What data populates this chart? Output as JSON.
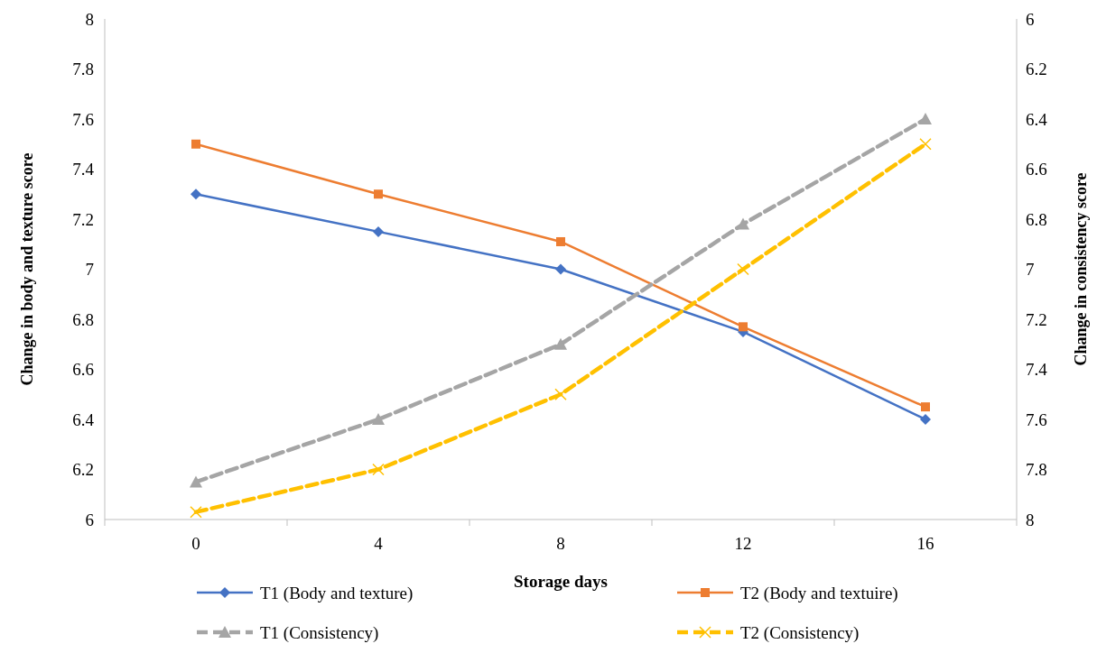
{
  "chart_data": {
    "type": "line",
    "xlabel": "Storage days",
    "ylabel": "Change in body and texture score",
    "y2label": "Change in consistency score",
    "categories": [
      "0",
      "4",
      "8",
      "12",
      "16"
    ],
    "ylim": [
      6,
      8
    ],
    "yticks": [
      6,
      6.2,
      6.4,
      6.6,
      6.8,
      7,
      7.2,
      7.4,
      7.6,
      7.8,
      8
    ],
    "y2lim": [
      8,
      6
    ],
    "y2ticks": [
      8,
      7.8,
      7.6,
      7.4,
      7.2,
      7,
      6.8,
      6.6,
      6.4,
      6.2,
      6
    ],
    "grid": false,
    "legend": "bottom",
    "series": [
      {
        "name": "T1 (Body and texture)",
        "color": "#4472c4",
        "values": [
          7.3,
          7.15,
          7.0,
          6.75,
          6.4
        ],
        "marker": "diamond",
        "line_style": "solid"
      },
      {
        "name": "T2 (Body and textuire)",
        "color": "#ed7d31",
        "values": [
          7.5,
          7.3,
          7.11,
          6.77,
          6.45
        ],
        "marker": "square",
        "line_style": "solid"
      },
      {
        "name": "T1 (Consistency)",
        "color": "#a5a5a5",
        "values": [
          7.85,
          7.6,
          7.3,
          6.82,
          6.4
        ],
        "marker": "triangle",
        "line_style": "dashed",
        "axis": "y2"
      },
      {
        "name": "T2 (Consistency)",
        "color": "#ffc000",
        "values": [
          7.97,
          7.8,
          7.5,
          7.0,
          6.5
        ],
        "marker": "cross",
        "line_style": "dashed",
        "axis": "y2"
      }
    ]
  }
}
